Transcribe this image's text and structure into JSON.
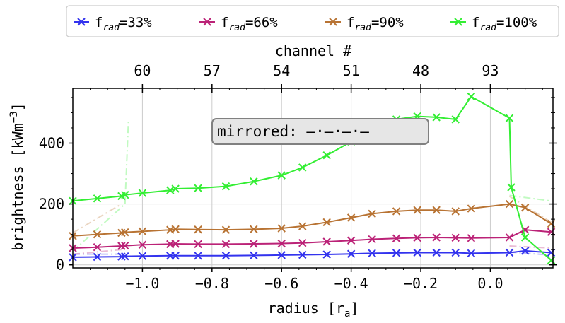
{
  "chart_data": {
    "type": "line",
    "xlabel": "radius [r",
    "xlabel_sub": "a",
    "xlabel_end": "]",
    "ylabel": "brightness [kWm",
    "ylabel_sup": "−3",
    "ylabel_end": "]",
    "top_axis_label": "channel #",
    "top_ticks": [
      {
        "label": "60",
        "r": -1.0
      },
      {
        "label": "57",
        "r": -0.8
      },
      {
        "label": "54",
        "r": -0.6
      },
      {
        "label": "51",
        "r": -0.4
      },
      {
        "label": "48",
        "r": -0.2
      },
      {
        "label": "93",
        "r": 0.0
      }
    ],
    "xlim": [
      -1.2,
      0.18
    ],
    "ylim": [
      -10,
      580
    ],
    "x_ticks": [
      {
        "v": -1.0,
        "label": "−1.0"
      },
      {
        "v": -0.8,
        "label": "−0.8"
      },
      {
        "v": -0.6,
        "label": "−0.6"
      },
      {
        "v": -0.4,
        "label": "−0.4"
      },
      {
        "v": -0.2,
        "label": "−0.2"
      },
      {
        "v": 0.0,
        "label": "0.0"
      }
    ],
    "y_ticks": [
      {
        "v": 0,
        "label": "0"
      },
      {
        "v": 200,
        "label": "200"
      },
      {
        "v": 400,
        "label": "400"
      }
    ],
    "grid": true,
    "legend": {
      "position": "top",
      "entries": [
        {
          "label": "f",
          "sub": "rad",
          "text": "=33%"
        },
        {
          "label": "f",
          "sub": "rad",
          "text": "=66%"
        },
        {
          "label": "f",
          "sub": "rad",
          "text": "=90%"
        },
        {
          "label": "f",
          "sub": "rad",
          "text": "=100%"
        }
      ]
    },
    "annotation": "mirrored: —·—·—·—",
    "series": [
      {
        "name": "f_rad=33%",
        "color": "#3333ee",
        "x": [
          -1.2,
          -1.13,
          -1.06,
          -1.05,
          -1.0,
          -0.92,
          -0.905,
          -0.84,
          -0.76,
          -0.68,
          -0.6,
          -0.54,
          -0.47,
          -0.4,
          -0.34,
          -0.27,
          -0.21,
          -0.155,
          -0.1,
          -0.055,
          0.055,
          0.1,
          0.175
        ],
        "y": [
          25,
          26,
          27,
          28,
          29,
          30,
          30,
          30,
          30,
          31,
          32,
          33,
          34,
          36,
          38,
          39,
          40,
          40,
          40,
          38,
          40,
          46,
          40
        ]
      },
      {
        "name": "f_rad=66%",
        "color": "#bb2277",
        "x": [
          -1.2,
          -1.13,
          -1.06,
          -1.05,
          -1.0,
          -0.92,
          -0.905,
          -0.84,
          -0.76,
          -0.68,
          -0.6,
          -0.54,
          -0.47,
          -0.4,
          -0.34,
          -0.27,
          -0.21,
          -0.155,
          -0.1,
          -0.055,
          0.055,
          0.1,
          0.175
        ],
        "y": [
          55,
          58,
          62,
          63,
          66,
          68,
          69,
          68,
          68,
          69,
          70,
          72,
          76,
          80,
          84,
          87,
          89,
          90,
          89,
          88,
          90,
          115,
          108
        ]
      },
      {
        "name": "f_rad=90%",
        "color": "#b87333",
        "x": [
          -1.2,
          -1.13,
          -1.06,
          -1.05,
          -1.0,
          -0.92,
          -0.905,
          -0.84,
          -0.76,
          -0.68,
          -0.6,
          -0.54,
          -0.47,
          -0.4,
          -0.34,
          -0.27,
          -0.21,
          -0.155,
          -0.1,
          -0.055,
          0.055,
          0.1,
          0.175
        ],
        "y": [
          95,
          100,
          105,
          107,
          110,
          115,
          117,
          116,
          115,
          117,
          120,
          127,
          140,
          155,
          168,
          176,
          180,
          180,
          176,
          185,
          200,
          188,
          135
        ]
      },
      {
        "name": "f_rad=100%",
        "color": "#33ee33",
        "x": [
          -1.2,
          -1.13,
          -1.06,
          -1.05,
          -1.0,
          -0.92,
          -0.905,
          -0.84,
          -0.76,
          -0.68,
          -0.6,
          -0.54,
          -0.47,
          -0.4,
          -0.34,
          -0.27,
          -0.21,
          -0.155,
          -0.1,
          -0.055,
          0.055,
          0.06,
          0.1,
          0.175
        ],
        "y": [
          210,
          218,
          226,
          230,
          236,
          245,
          250,
          252,
          258,
          274,
          294,
          320,
          360,
          405,
          450,
          478,
          488,
          485,
          478,
          553,
          482,
          255,
          90,
          15
        ]
      }
    ],
    "mirrored_series": [
      {
        "color": "#3333ee",
        "x": [
          -1.2,
          -1.06
        ],
        "y": [
          35,
          35
        ]
      },
      {
        "color": "#bb2277",
        "x": [
          -1.2,
          -1.06
        ],
        "y": [
          35,
          50
        ]
      },
      {
        "color": "#b87333",
        "x": [
          -1.2,
          -1.06
        ],
        "y": [
          105,
          200
        ]
      },
      {
        "color": "#33ee33",
        "x": [
          -1.2,
          -1.05,
          -1.04
        ],
        "y": [
          45,
          200,
          478
        ]
      },
      {
        "color": "#3333ee",
        "x": [
          0.055,
          0.175
        ],
        "y": [
          42,
          32
        ]
      },
      {
        "color": "#bb2277",
        "x": [
          0.055,
          0.175
        ],
        "y": [
          62,
          55
        ]
      },
      {
        "color": "#b87333",
        "x": [
          0.055,
          0.175
        ],
        "y": [
          225,
          140
        ]
      },
      {
        "color": "#33ee33",
        "x": [
          0.055,
          0.175
        ],
        "y": [
          228,
          210
        ]
      }
    ]
  }
}
